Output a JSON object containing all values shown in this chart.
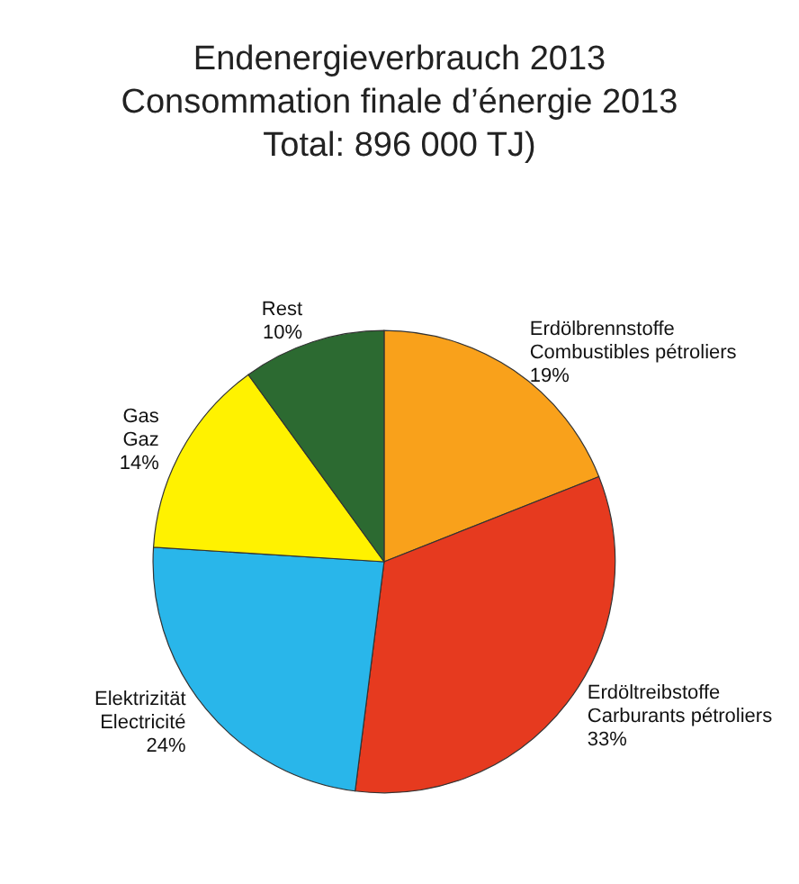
{
  "chart_data": {
    "type": "pie",
    "title": "Endenergieverbrauch 2013\nConsommation finale d’énergie 2013\nTotal: 896 000 TJ)",
    "categories": [
      "Erdölbrennstoffe\nCombustibles pétroliers",
      "Erdöltreibstoffe\nCarburants pétroliers",
      "Elektrizität\nElectricité",
      "Gas\nGaz",
      "Rest"
    ],
    "values": [
      19,
      33,
      24,
      14,
      10
    ],
    "colors": [
      "#f9a11b",
      "#e63a1f",
      "#29b6ea",
      "#fff200",
      "#2c6a31"
    ],
    "value_labels": [
      "19%",
      "33%",
      "24%",
      "14%",
      "10%"
    ],
    "legend": false
  }
}
